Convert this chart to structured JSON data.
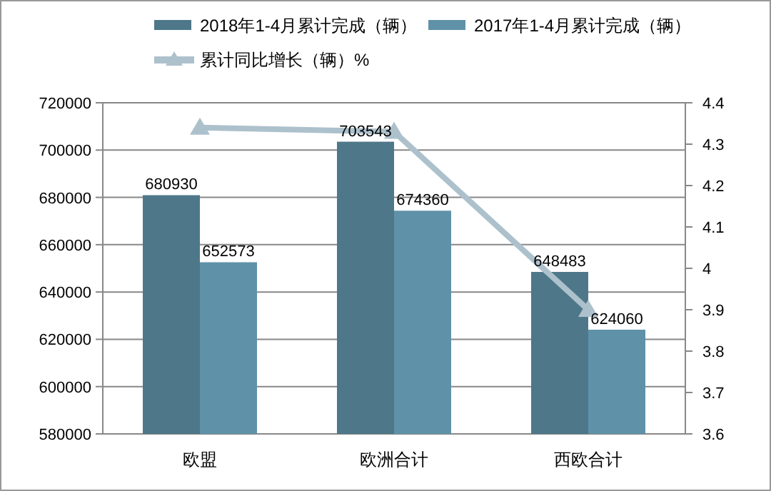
{
  "chart_data": {
    "type": "bar",
    "categories": [
      "欧盟",
      "欧洲合计",
      "西欧合计"
    ],
    "series": [
      {
        "name": "2018年1-4月累计完成（辆）",
        "color": "#4e7889",
        "values": [
          680930,
          703543,
          648483
        ],
        "value_labels": [
          "680930",
          "703543",
          "648483"
        ]
      },
      {
        "name": "2017年1-4月累计完成（辆）",
        "color": "#5f92a8",
        "values": [
          652573,
          674360,
          624060
        ],
        "value_labels": [
          "652573",
          "674360",
          "624060"
        ]
      },
      {
        "name": "累计同比增长（辆）%",
        "type": "line",
        "axis": "y2",
        "color": "#adc1cc",
        "marker": "triangle",
        "values": [
          4.34,
          4.33,
          3.9
        ]
      }
    ],
    "ylim": [
      580000,
      720000
    ],
    "yticks": [
      580000,
      600000,
      620000,
      640000,
      660000,
      680000,
      700000,
      720000
    ],
    "y2lim": [
      3.6,
      4.4
    ],
    "y2ticks": [
      3.6,
      3.7,
      3.8,
      3.9,
      4,
      4.1,
      4.2,
      4.3,
      4.4
    ],
    "grid": "y",
    "legend": "top"
  }
}
